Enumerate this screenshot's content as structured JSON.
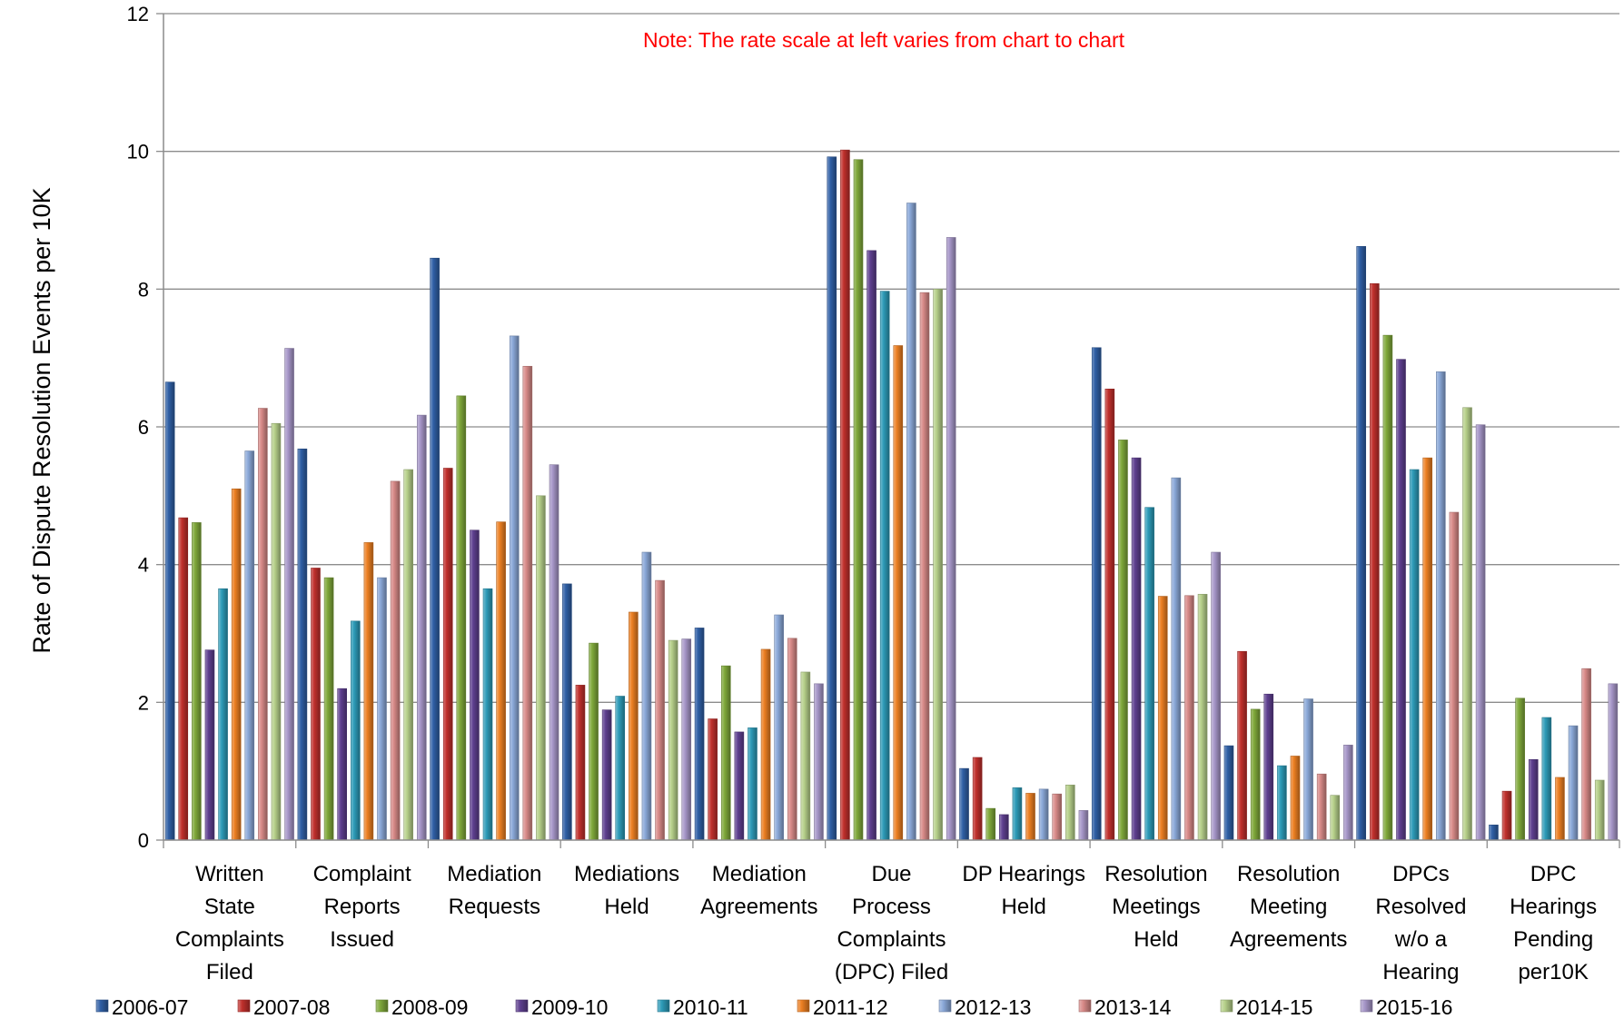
{
  "chart_data": {
    "type": "bar",
    "ylabel": "Rate of Dispute Resolution Events per 10K",
    "xlabel": "",
    "ylim": [
      0,
      12
    ],
    "yticks": [
      0,
      2,
      4,
      6,
      8,
      10,
      12
    ],
    "grid": true,
    "legend_placement": "bottom",
    "note": "Note:  The rate scale at left varies from chart to chart",
    "note_color": "#ff0000",
    "categories": [
      "Written State Complaints Filed",
      "Complaint Reports Issued",
      "Mediation Requests",
      "Mediations Held",
      "Mediation Agreements",
      "Due Process Complaints (DPC) Filed",
      "DP Hearings Held",
      "Resolution Meetings Held",
      "Resolution Meeting Agreements",
      "DPCs Resolved w/o a Hearing",
      "DPC Hearings Pending per10K"
    ],
    "category_lines": [
      [
        "Written",
        "State",
        "Complaints",
        "Filed"
      ],
      [
        "Complaint",
        "Reports",
        "Issued"
      ],
      [
        "Mediation",
        "Requests"
      ],
      [
        "Mediations",
        "Held"
      ],
      [
        "Mediation",
        "Agreements"
      ],
      [
        "Due",
        "Process",
        "Complaints",
        "(DPC) Filed"
      ],
      [
        "DP Hearings",
        "Held"
      ],
      [
        "Resolution",
        "Meetings",
        "Held"
      ],
      [
        "Resolution",
        "Meeting",
        "Agreements"
      ],
      [
        "DPCs",
        "Resolved",
        "w/o a",
        "Hearing"
      ],
      [
        "DPC",
        "Hearings",
        "Pending",
        "per10K"
      ]
    ],
    "series": [
      {
        "name": "2006-07",
        "color": "#2f5fa5",
        "values": [
          6.65,
          5.68,
          8.45,
          3.72,
          3.08,
          9.92,
          1.04,
          7.15,
          1.37,
          8.62,
          0.22
        ]
      },
      {
        "name": "2007-08",
        "color": "#c0302c",
        "values": [
          4.68,
          3.95,
          5.4,
          2.25,
          1.76,
          10.02,
          1.2,
          6.55,
          2.74,
          8.08,
          0.71
        ]
      },
      {
        "name": "2008-09",
        "color": "#7fa83a",
        "values": [
          4.61,
          3.81,
          6.45,
          2.86,
          2.53,
          9.88,
          0.46,
          5.81,
          1.9,
          7.33,
          2.06
        ]
      },
      {
        "name": "2009-10",
        "color": "#5e3f8f",
        "values": [
          2.76,
          2.2,
          4.5,
          1.89,
          1.57,
          8.56,
          0.37,
          5.55,
          2.12,
          6.98,
          1.17
        ]
      },
      {
        "name": "2010-11",
        "color": "#2d9bb8",
        "values": [
          3.65,
          3.18,
          3.65,
          2.09,
          1.63,
          7.97,
          0.76,
          4.83,
          1.08,
          5.38,
          1.78
        ]
      },
      {
        "name": "2011-12",
        "color": "#ec7f22",
        "values": [
          5.1,
          4.32,
          4.62,
          3.31,
          2.77,
          7.18,
          0.68,
          3.54,
          1.22,
          5.55,
          0.91
        ]
      },
      {
        "name": "2012-13",
        "color": "#8aa8d8",
        "values": [
          5.65,
          3.81,
          7.32,
          4.18,
          3.27,
          9.25,
          0.74,
          5.26,
          2.05,
          6.8,
          1.66
        ]
      },
      {
        "name": "2013-14",
        "color": "#d88a88",
        "values": [
          6.27,
          5.21,
          6.88,
          3.77,
          2.93,
          7.95,
          0.67,
          3.55,
          0.96,
          4.76,
          2.49
        ]
      },
      {
        "name": "2014-15",
        "color": "#b6d08a",
        "values": [
          6.05,
          5.38,
          5.0,
          2.9,
          2.44,
          8.0,
          0.8,
          3.57,
          0.65,
          6.28,
          0.87
        ]
      },
      {
        "name": "2015-16",
        "color": "#a696c8",
        "values": [
          7.14,
          6.17,
          5.45,
          2.92,
          2.27,
          8.75,
          0.43,
          4.18,
          1.38,
          6.03,
          2.27
        ]
      }
    ]
  }
}
